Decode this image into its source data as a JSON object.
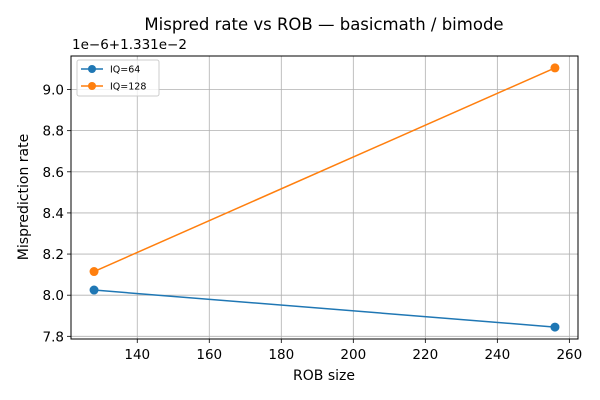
{
  "chart_data": {
    "type": "line",
    "title": "Mispred rate vs ROB — basicmath / bimode",
    "xlabel": "ROB size",
    "ylabel": "Misprediction rate",
    "y_offset_label": "1e−6+1.331e−2",
    "x": [
      128,
      256
    ],
    "xlim": [
      121.6,
      262.4
    ],
    "ylim": [
      7.787,
      9.163
    ],
    "y_display_units": "1e-6 relative to offset 1.331e-2",
    "xticks": [
      140,
      160,
      180,
      200,
      220,
      240,
      260
    ],
    "xtick_labels": [
      "140",
      "160",
      "180",
      "200",
      "220",
      "240",
      "260"
    ],
    "yticks": [
      7.8,
      8.0,
      8.2,
      8.4,
      8.6,
      8.8,
      9.0
    ],
    "ytick_labels": [
      "7.8",
      "8.0",
      "8.2",
      "8.4",
      "8.6",
      "8.8",
      "9.0"
    ],
    "grid": true,
    "legend_position": "top-left",
    "series": [
      {
        "name": "IQ=64",
        "color": "#1f77b4",
        "marker": "circle",
        "values": [
          8.025,
          7.845
        ]
      },
      {
        "name": "IQ=128",
        "color": "#ff7f0e",
        "marker": "circle",
        "values": [
          8.115,
          9.105
        ]
      }
    ]
  }
}
